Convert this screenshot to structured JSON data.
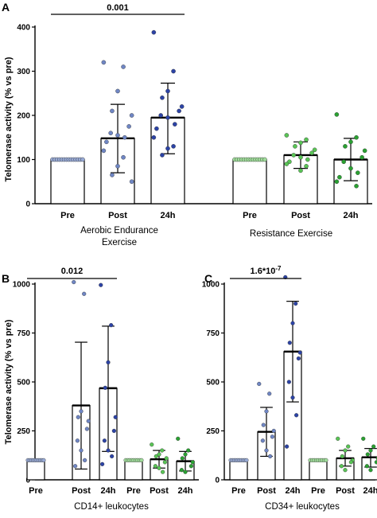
{
  "colors": {
    "light_blue": "#97a9d4",
    "mid_blue": "#6f86c4",
    "dark_blue": "#2c43a6",
    "light_green": "#9fdc9a",
    "mid_green": "#59c455",
    "dark_green": "#2aa132",
    "axis": "#000000",
    "bar_fill": "#ffffff"
  },
  "chart_data": [
    {
      "panel": "A",
      "type": "bar",
      "ylabel": "Telomerase activity (% vs pre)",
      "ylim": [
        0,
        400
      ],
      "yticks": [
        0,
        100,
        200,
        300,
        400
      ],
      "groups": [
        {
          "label": "Aerobic Endurance Exercise",
          "label_lines": [
            "Aerobic Endurance",
            "Exercise"
          ],
          "categories": [
            "Pre",
            "Post",
            "24h"
          ],
          "means": [
            100,
            148,
            195
          ],
          "sd_upper": [
            100,
            225,
            273
          ],
          "sd_lower": [
            100,
            70,
            113
          ],
          "points": [
            [
              100,
              100,
              100,
              100,
              100,
              100,
              100,
              100,
              100,
              100,
              100,
              100,
              100,
              100
            ],
            [
              320,
              310,
              255,
              210,
              200,
              175,
              160,
              155,
              150,
              140,
              120,
              105,
              85,
              65,
              50
            ],
            [
              388,
              300,
              255,
              240,
              220,
              210,
              200,
              195,
              180,
              170,
              150,
              130,
              125,
              110
            ]
          ],
          "palette": "blue"
        },
        {
          "label": "Resistance Exercise",
          "label_lines": [
            "Resistance Exercise"
          ],
          "categories": [
            "Pre",
            "Post",
            "24h"
          ],
          "means": [
            100,
            110,
            100
          ],
          "sd_upper": [
            100,
            140,
            148
          ],
          "sd_lower": [
            100,
            80,
            52
          ],
          "points": [
            [
              100,
              100,
              100,
              100,
              100,
              100,
              100,
              100,
              100,
              100,
              100,
              100,
              100,
              100
            ],
            [
              155,
              145,
              138,
              130,
              122,
              115,
              110,
              105,
              100,
              95,
              90,
              85,
              75
            ],
            [
              202,
              150,
              140,
              130,
              120,
              105,
              95,
              80,
              70,
              60,
              50,
              40
            ]
          ],
          "palette": "green"
        }
      ],
      "annotations": [
        {
          "text": "0.001",
          "from": "Pre",
          "to": "24h",
          "group": 0,
          "y": 430
        }
      ]
    },
    {
      "panel": "B",
      "type": "bar",
      "ylabel": "Telomerase activity (% vs pre)",
      "xlabel": "CD14+ leukocytes",
      "ylim": [
        0,
        1000
      ],
      "yticks": [
        0,
        250,
        500,
        750,
        1000
      ],
      "groups": [
        {
          "categories": [
            "Pre",
            "Post",
            "24h"
          ],
          "means": [
            100,
            380,
            468
          ],
          "sd_upper": [
            100,
            703,
            785
          ],
          "sd_lower": [
            100,
            55,
            145
          ],
          "points": [
            [
              100,
              100,
              100,
              100,
              100,
              100,
              100,
              100,
              100,
              100
            ],
            [
              1010,
              950,
              350,
              320,
              300,
              260,
              200,
              150,
              100,
              70
            ],
            [
              995,
              790,
              600,
              470,
              320,
              250,
              200,
              150,
              120,
              80
            ]
          ],
          "palette": "blue"
        },
        {
          "categories": [
            "Pre",
            "Post",
            "24h"
          ],
          "means": [
            100,
            105,
            95
          ],
          "sd_upper": [
            100,
            150,
            145
          ],
          "sd_lower": [
            100,
            60,
            45
          ],
          "points": [
            [
              100,
              100,
              100,
              100,
              100,
              100,
              100,
              100,
              100
            ],
            [
              180,
              150,
              130,
              120,
              110,
              90,
              70,
              60,
              40
            ],
            [
              210,
              150,
              130,
              110,
              90,
              70,
              50,
              40
            ]
          ],
          "palette": "green"
        }
      ],
      "annotations": [
        {
          "text": "0.012",
          "from": "Pre",
          "to": "24h",
          "group": 0,
          "y": 1000
        }
      ]
    },
    {
      "panel": "C",
      "type": "bar",
      "xlabel": "CD34+ leukocytes",
      "ylim": [
        0,
        1000
      ],
      "yticks": [
        0,
        250,
        500,
        750,
        1000
      ],
      "groups": [
        {
          "categories": [
            "Pre",
            "Post",
            "24h"
          ],
          "means": [
            100,
            245,
            655
          ],
          "sd_upper": [
            100,
            370,
            912
          ],
          "sd_lower": [
            100,
            120,
            398
          ],
          "points": [
            [
              100,
              100,
              100,
              100,
              100,
              100,
              100,
              100,
              100,
              100
            ],
            [
              490,
              440,
              350,
              280,
              250,
              220,
              200,
              150,
              120
            ],
            [
              1035,
              900,
              800,
              700,
              650,
              620,
              500,
              420,
              330,
              170
            ]
          ],
          "palette": "blue"
        },
        {
          "categories": [
            "Pre",
            "Post",
            "24h"
          ],
          "means": [
            100,
            110,
            115
          ],
          "sd_upper": [
            100,
            150,
            160
          ],
          "sd_lower": [
            100,
            70,
            65
          ],
          "points": [
            [
              100,
              100,
              100,
              100,
              100,
              100,
              100,
              100,
              100
            ],
            [
              210,
              170,
              150,
              120,
              100,
              90,
              70,
              50
            ],
            [
              210,
              170,
              150,
              130,
              110,
              90,
              70,
              50
            ]
          ],
          "palette": "green"
        }
      ],
      "annotations": [
        {
          "text": "1.6*10",
          "superscript": "-7",
          "from": "Pre",
          "to": "24h",
          "group": 0,
          "y": 1000
        }
      ]
    }
  ],
  "panel_labels": [
    "A",
    "B",
    "C"
  ]
}
